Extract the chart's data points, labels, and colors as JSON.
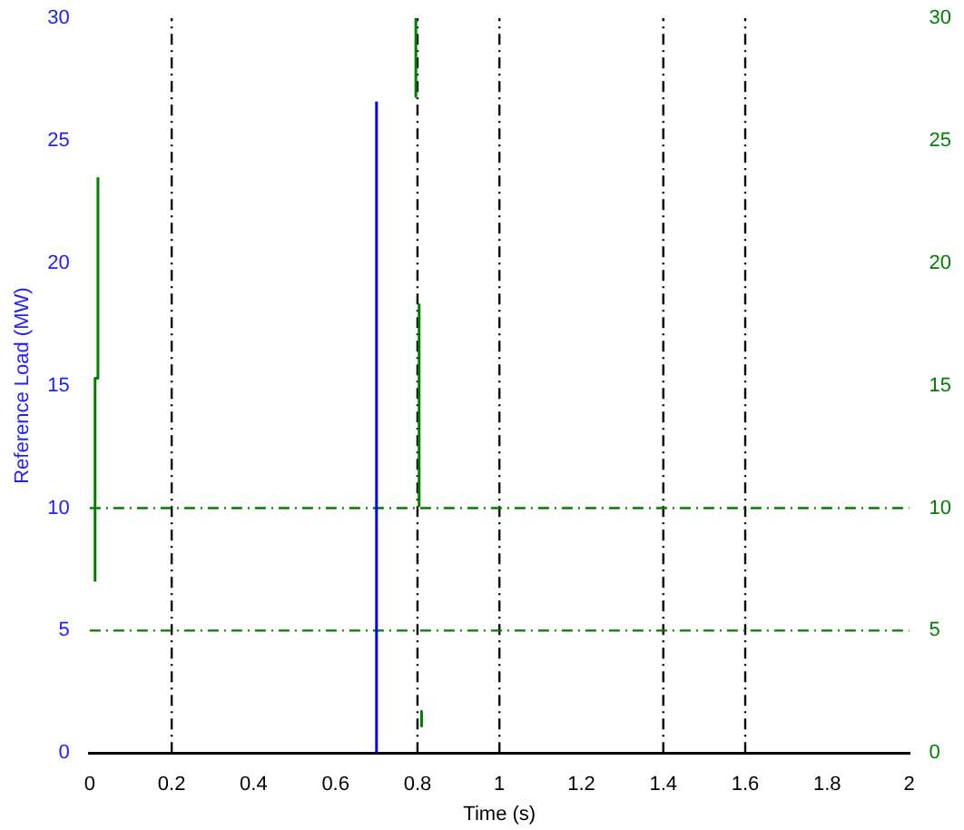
{
  "chart_data": {
    "type": "line",
    "xlabel": "Time (s)",
    "ylabel": "Reference Load (MW)",
    "xlim": [
      0,
      2
    ],
    "xticks": [
      0,
      0.2,
      0.4,
      0.6,
      0.8,
      1,
      1.2,
      1.4,
      1.6,
      1.8,
      2
    ],
    "ylim": [
      0,
      30
    ],
    "yticks": [
      0,
      5,
      10,
      15,
      20,
      25,
      30
    ],
    "y2lim": [
      0,
      30
    ],
    "y2ticks": [
      0,
      5,
      10,
      15,
      20,
      25,
      30
    ],
    "grid": false,
    "legend": false,
    "marker": "none",
    "line_style": "solid",
    "series": [
      {
        "color": "#0000ff",
        "x": [
          0.7,
          0.7
        ],
        "values": [
          0,
          26.6
        ]
      },
      {
        "color": "#008000",
        "x": [
          0.013,
          0.013,
          0.02,
          0.02,
          0.4,
          0.796,
          0.796,
          0.8,
          0.804,
          0.804,
          0.807,
          0.81,
          0.81
        ],
        "values": [
          7,
          15.3,
          15.3,
          23.5,
          null,
          30,
          26.8,
          null,
          18.3,
          10.1,
          null,
          1.7,
          1.1
        ]
      }
    ],
    "ref_lines": [
      {
        "axis": "x",
        "value": 0.2,
        "color": "#000000",
        "line_style": "dashed"
      },
      {
        "axis": "x",
        "value": 0.8,
        "color": "#000000",
        "line_style": "dashed"
      },
      {
        "axis": "x",
        "value": 1,
        "color": "#000000",
        "line_style": "dashed"
      },
      {
        "axis": "x",
        "value": 1.4,
        "color": "#000000",
        "line_style": "dashed"
      },
      {
        "axis": "x",
        "value": 1.6,
        "color": "#000000",
        "line_style": "dashed"
      },
      {
        "axis": "y",
        "value": 5,
        "color": "#008000",
        "line_style": "dashed"
      },
      {
        "axis": "y",
        "value": 10,
        "color": "#008000",
        "line_style": "dashed"
      }
    ]
  }
}
